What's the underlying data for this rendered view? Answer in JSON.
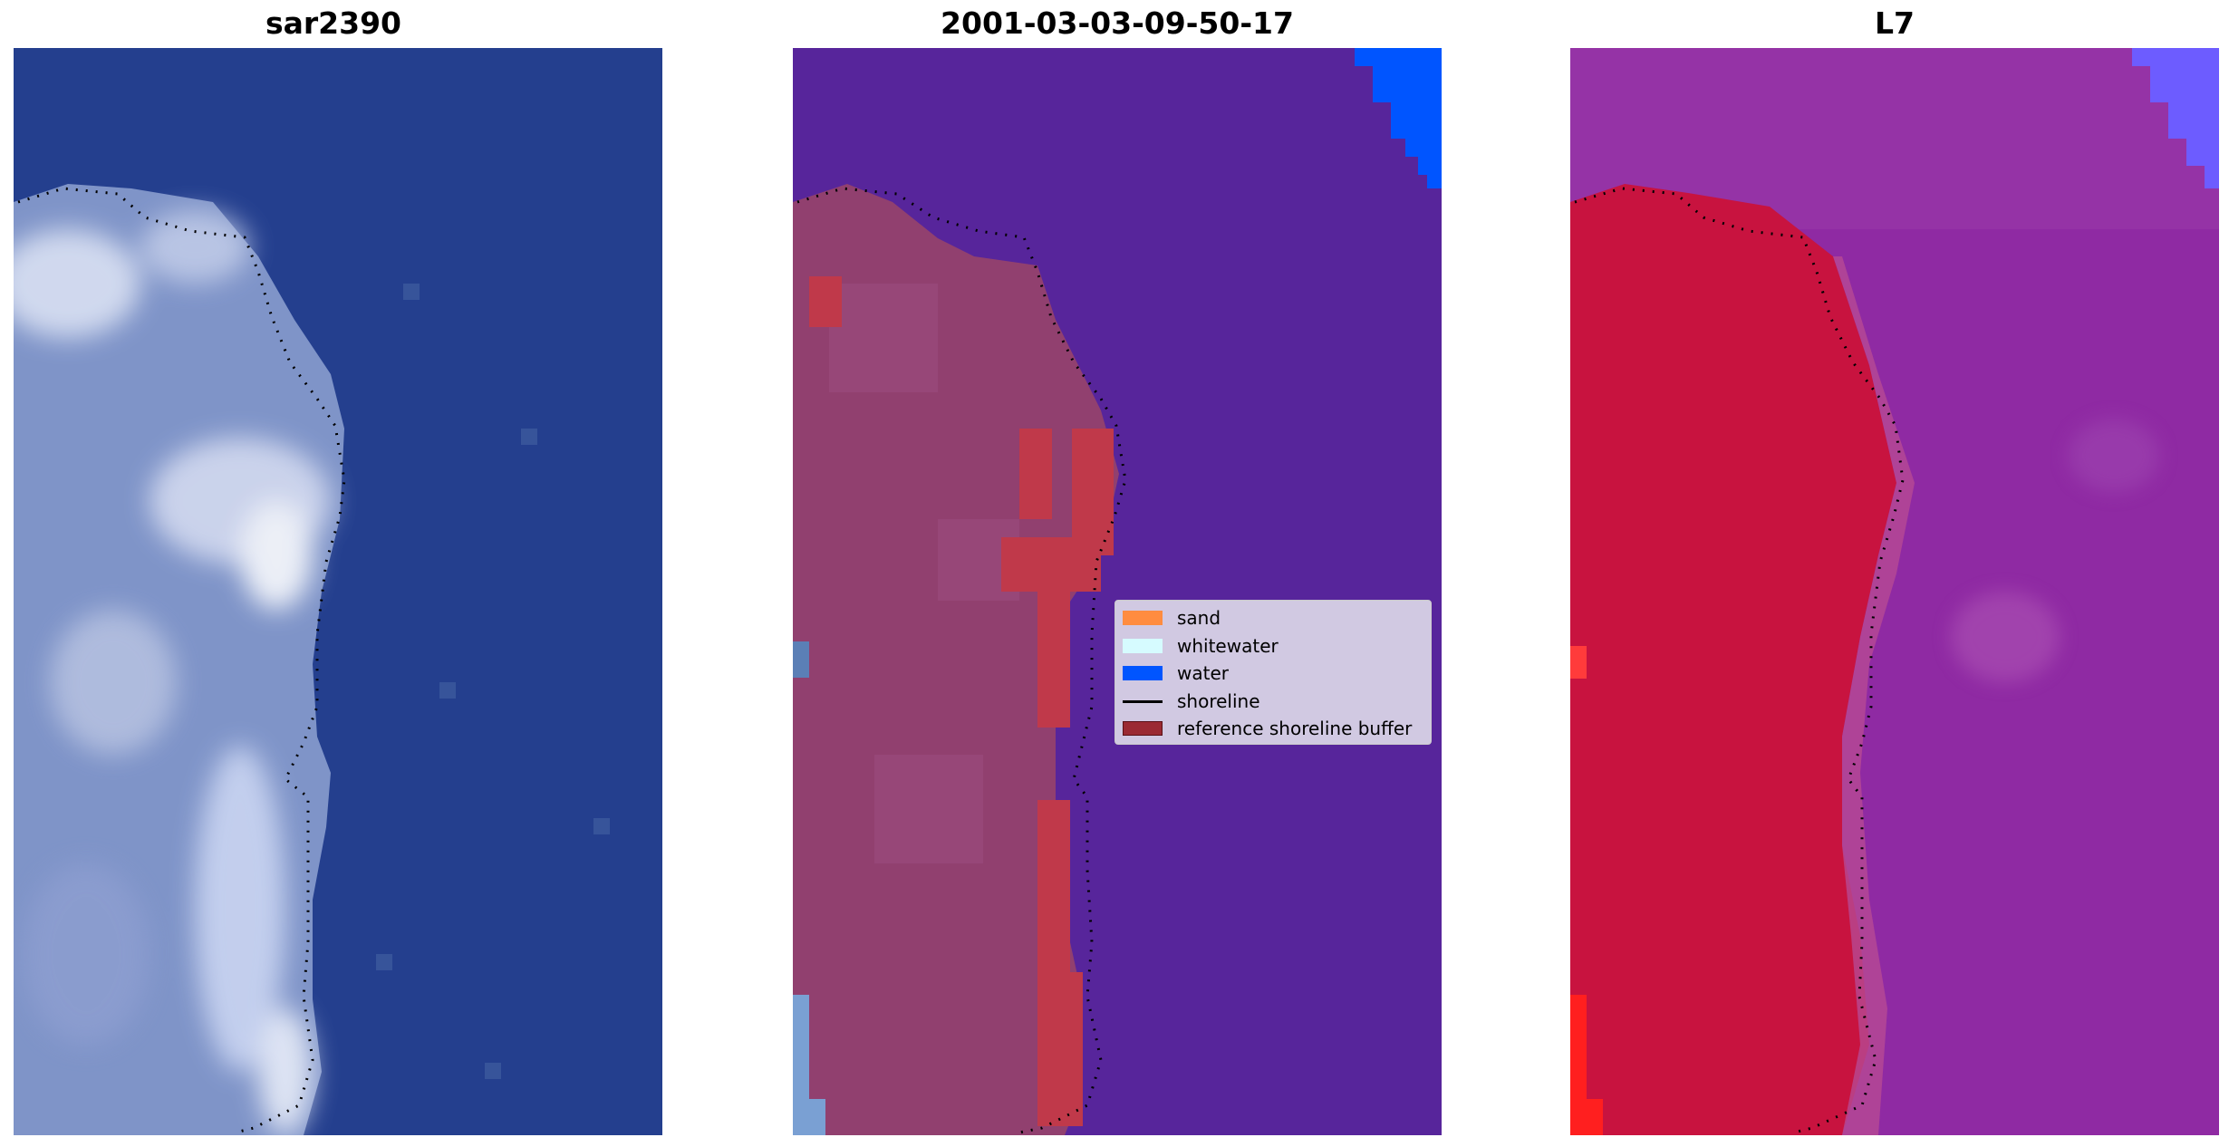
{
  "panels": [
    {
      "title": "sar2390"
    },
    {
      "title": "2001-03-03-09-50-17"
    },
    {
      "title": "L7"
    }
  ],
  "legend": {
    "items": [
      {
        "label": "sand",
        "color": "#ff8c40",
        "type": "patch"
      },
      {
        "label": "whitewater",
        "color": "#d6fbff",
        "type": "patch"
      },
      {
        "label": "water",
        "color": "#0055ff",
        "type": "patch"
      },
      {
        "label": "shoreline",
        "color": "#000000",
        "type": "line"
      },
      {
        "label": "reference shoreline buffer",
        "color": "#9b2a33",
        "type": "patch"
      }
    ]
  },
  "colors": {
    "rgb_water": "#243f8e",
    "rgb_land": "#8094c8",
    "classified_water": "#57259b",
    "classified_land": "#91406f",
    "ndwi_water": "#8f2aa3",
    "ndwi_land": "#c8133f"
  }
}
